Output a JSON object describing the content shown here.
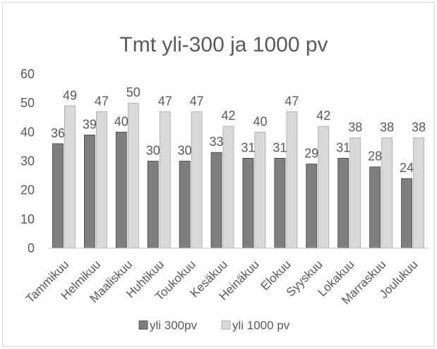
{
  "chart_data": {
    "type": "bar",
    "title": "Tmt yli-300 ja 1000 pv",
    "categories": [
      "Tammikuu",
      "Helmikuu",
      "Maaliskuu",
      "Huhtikuu",
      "Toukokuu",
      "Kesäkuu",
      "Heinäkuu",
      "Elokuu",
      "Syyskuu",
      "Lokakuu",
      "Marraskuu",
      "Joulukuu"
    ],
    "series": [
      {
        "name": "yli 300pv",
        "values": [
          36,
          39,
          40,
          30,
          30,
          33,
          31,
          31,
          29,
          31,
          28,
          24
        ],
        "color": "#7f7f7f"
      },
      {
        "name": "yli 1000 pv",
        "values": [
          49,
          47,
          50,
          47,
          47,
          42,
          40,
          47,
          42,
          38,
          38,
          38
        ],
        "color": "#d9d9d9"
      }
    ],
    "ylim": [
      0,
      60
    ],
    "yticks": [
      0,
      10,
      20,
      30,
      40,
      50,
      60
    ],
    "grid": false,
    "legend_position": "bottom",
    "data_labels": true
  }
}
